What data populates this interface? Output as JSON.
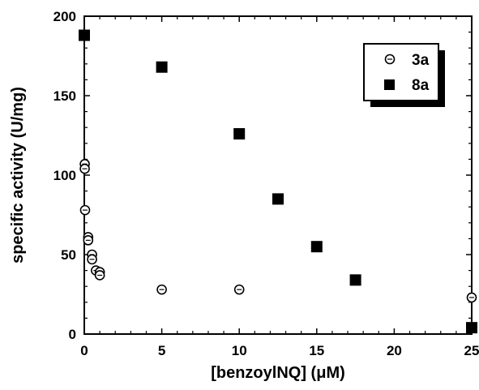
{
  "chart_data": {
    "type": "scatter",
    "xlabel": "[benzoylNQ] (μM)",
    "ylabel": "specific activity (U/mg)",
    "xlim": [
      0,
      25
    ],
    "ylim": [
      0,
      200
    ],
    "xticks": [
      "0",
      "5",
      "10",
      "15",
      "20",
      "25"
    ],
    "yticks": [
      "0",
      "50",
      "100",
      "150",
      "200"
    ],
    "grid": false,
    "legend_position": "top-right",
    "series": [
      {
        "name": "3a",
        "marker": "open-circle",
        "color": "#000000",
        "points": [
          {
            "x": 0.03,
            "y": 107
          },
          {
            "x": 0.03,
            "y": 104
          },
          {
            "x": 0.05,
            "y": 78
          },
          {
            "x": 0.25,
            "y": 61
          },
          {
            "x": 0.25,
            "y": 59
          },
          {
            "x": 0.5,
            "y": 50
          },
          {
            "x": 0.5,
            "y": 47
          },
          {
            "x": 0.75,
            "y": 40
          },
          {
            "x": 1.0,
            "y": 39
          },
          {
            "x": 1.0,
            "y": 37
          },
          {
            "x": 5,
            "y": 28
          },
          {
            "x": 10,
            "y": 28
          },
          {
            "x": 25,
            "y": 23
          }
        ]
      },
      {
        "name": "8a",
        "marker": "filled-square",
        "color": "#000000",
        "points": [
          {
            "x": 0,
            "y": 188
          },
          {
            "x": 5,
            "y": 168
          },
          {
            "x": 10,
            "y": 126
          },
          {
            "x": 12.5,
            "y": 85
          },
          {
            "x": 15,
            "y": 55
          },
          {
            "x": 17.5,
            "y": 34
          },
          {
            "x": 25,
            "y": 4
          }
        ]
      }
    ]
  }
}
